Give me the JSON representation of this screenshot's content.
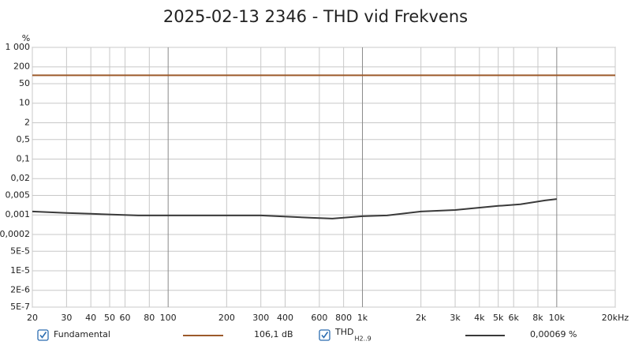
{
  "chart_data": {
    "type": "line",
    "title": "2025-02-13 2346 - THD vid Frekvens",
    "y_unit": "%",
    "log_x": true,
    "log_y": true,
    "grid": true,
    "xlim": [
      20,
      20000
    ],
    "xticks": [
      20,
      30,
      40,
      50,
      60,
      80,
      100,
      200,
      300,
      400,
      600,
      800,
      {
        "value": 1000,
        "label": "1k"
      },
      {
        "value": 2000,
        "label": "2k"
      },
      {
        "value": 3000,
        "label": "3k"
      },
      {
        "value": 4000,
        "label": "4k"
      },
      {
        "value": 5000,
        "label": "5k"
      },
      {
        "value": 6000,
        "label": "6k"
      },
      {
        "value": 8000,
        "label": "8k"
      },
      {
        "value": 10000,
        "label": "10k"
      },
      {
        "value": 20000,
        "label": "20kHz"
      }
    ],
    "ylim": [
      1000,
      5e-07
    ],
    "yticks": [
      {
        "value": 1000,
        "label": "1 000"
      },
      200,
      50,
      10,
      2,
      {
        "value": 0.5,
        "label": "0,5"
      },
      {
        "value": 0.1,
        "label": "0,1"
      },
      {
        "value": 0.02,
        "label": "0,02"
      },
      {
        "value": 0.005,
        "label": "0,005"
      },
      {
        "value": 0.001,
        "label": "0,001"
      },
      {
        "value": 0.0002,
        "label": "0,0002"
      },
      {
        "value": 5e-05,
        "label": "5E-5"
      },
      {
        "value": 1e-05,
        "label": "1E-5"
      },
      {
        "value": 2e-06,
        "label": "2E-6"
      },
      {
        "value": 5e-07,
        "label": "5E-7"
      }
    ],
    "series": [
      {
        "name": "Fundamental",
        "color": "#9c5a2a",
        "readout": "106,1 dB",
        "x": [
          20,
          20000
        ],
        "values": [
          100,
          100
        ]
      },
      {
        "name": "THD",
        "name_sub": "H2..9",
        "color": "#3a3a3a",
        "readout": "0,00069 %",
        "x": [
          20,
          30,
          40,
          70,
          150,
          300,
          550,
          700,
          1000,
          1340,
          2000,
          3000,
          5000,
          6500,
          8700,
          10000
        ],
        "values": [
          0.00133,
          0.00117,
          0.0011,
          0.00096,
          0.00096,
          0.00096,
          0.00079,
          0.00074,
          0.0009,
          0.00096,
          0.00133,
          0.0015,
          0.0021,
          0.0024,
          0.0033,
          0.0037
        ]
      }
    ]
  }
}
